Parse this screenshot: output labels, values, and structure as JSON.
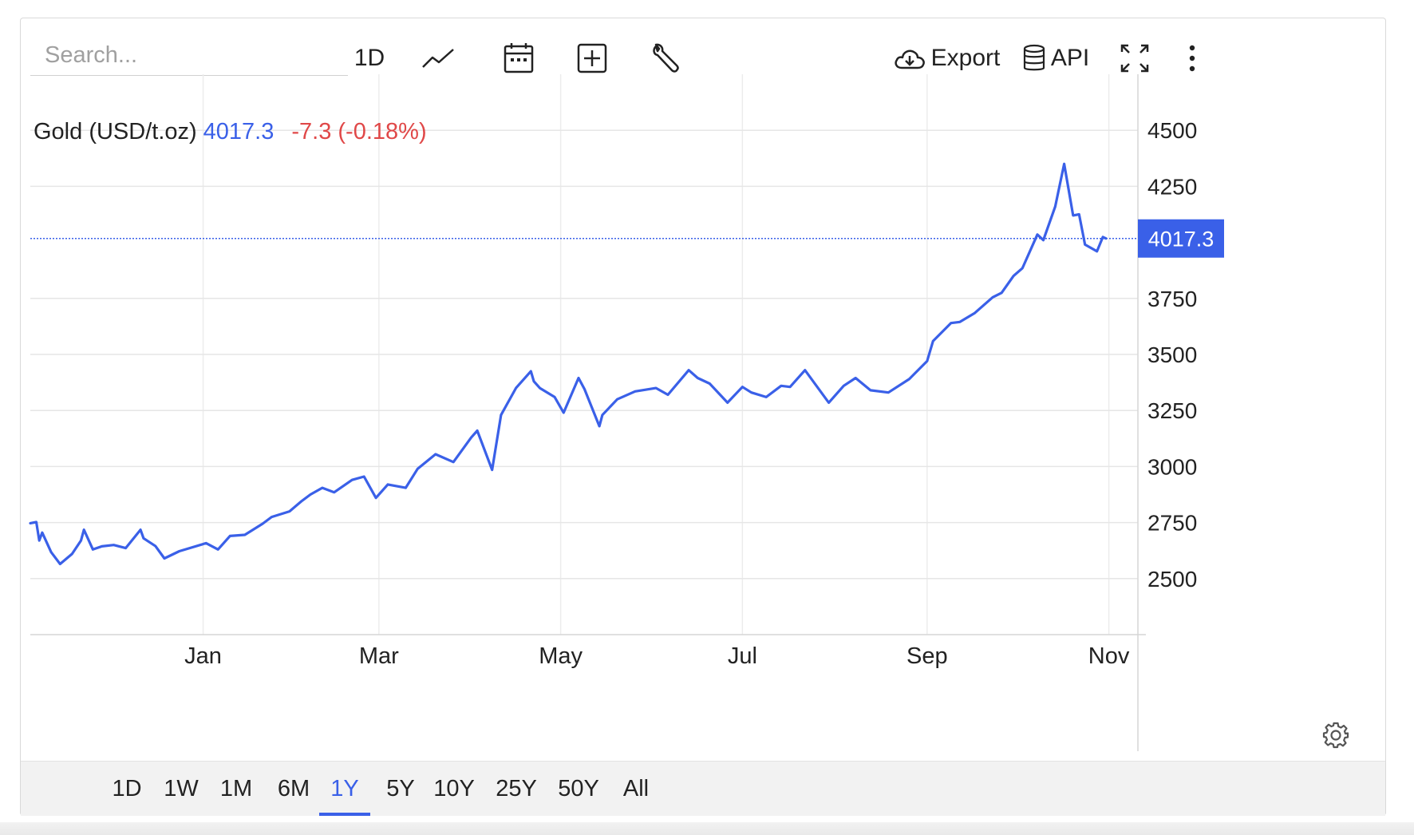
{
  "toolbar": {
    "search_placeholder": "Search...",
    "interval_label": "1D",
    "export_label": "Export",
    "api_label": "API"
  },
  "icons": {
    "chart_type": "line-chart-icon",
    "calendar": "calendar-icon",
    "add": "plus-box-icon",
    "tools": "wrench-icon",
    "export": "cloud-download-icon",
    "api": "database-icon",
    "fullscreen": "fullscreen-icon",
    "more": "more-vertical-icon",
    "settings": "gear-icon"
  },
  "legend": {
    "name": "Gold (USD/t.oz)",
    "price": "4017.3",
    "change": "-7.3 (-0.18%)"
  },
  "colors": {
    "line": "#3a60e8",
    "negative": "#e04848",
    "price_tag_bg": "#3a60e8"
  },
  "range_buttons": [
    "1D",
    "1W",
    "1M",
    "6M",
    "1Y",
    "5Y",
    "10Y",
    "25Y",
    "50Y",
    "All"
  ],
  "active_range": "1Y",
  "chart_data": {
    "type": "line",
    "series": [
      {
        "name": "Gold (USD/t.oz)",
        "x": [
          "2024-11-04",
          "2024-11-06",
          "2024-11-07",
          "2024-11-08",
          "2024-11-11",
          "2024-11-14",
          "2024-11-18",
          "2024-11-21",
          "2024-11-22",
          "2024-11-25",
          "2024-11-28",
          "2024-12-02",
          "2024-12-06",
          "2024-12-11",
          "2024-12-12",
          "2024-12-16",
          "2024-12-19",
          "2024-12-24",
          "2025-01-02",
          "2025-01-06",
          "2025-01-10",
          "2025-01-15",
          "2025-01-21",
          "2025-01-24",
          "2025-01-30",
          "2025-02-03",
          "2025-02-06",
          "2025-02-10",
          "2025-02-14",
          "2025-02-20",
          "2025-02-24",
          "2025-02-28",
          "2025-03-04",
          "2025-03-10",
          "2025-03-14",
          "2025-03-20",
          "2025-03-26",
          "2025-04-01",
          "2025-04-03",
          "2025-04-08",
          "2025-04-11",
          "2025-04-16",
          "2025-04-21",
          "2025-04-22",
          "2025-04-24",
          "2025-04-29",
          "2025-05-02",
          "2025-05-07",
          "2025-05-09",
          "2025-05-14",
          "2025-05-15",
          "2025-05-20",
          "2025-05-26",
          "2025-06-02",
          "2025-06-06",
          "2025-06-13",
          "2025-06-16",
          "2025-06-20",
          "2025-06-26",
          "2025-07-01",
          "2025-07-04",
          "2025-07-09",
          "2025-07-14",
          "2025-07-17",
          "2025-07-22",
          "2025-07-30",
          "2025-08-04",
          "2025-08-08",
          "2025-08-13",
          "2025-08-19",
          "2025-08-26",
          "2025-09-01",
          "2025-09-03",
          "2025-09-09",
          "2025-09-12",
          "2025-09-17",
          "2025-09-23",
          "2025-09-26",
          "2025-09-30",
          "2025-10-03",
          "2025-10-08",
          "2025-10-10",
          "2025-10-14",
          "2025-10-17",
          "2025-10-20",
          "2025-10-22",
          "2025-10-24",
          "2025-10-28",
          "2025-10-30",
          "2025-10-31"
        ],
        "values": [
          2747,
          2752,
          2670,
          2705,
          2618,
          2565,
          2610,
          2670,
          2718,
          2630,
          2644,
          2650,
          2636,
          2718,
          2680,
          2645,
          2590,
          2622,
          2658,
          2630,
          2690,
          2695,
          2745,
          2775,
          2800,
          2845,
          2875,
          2905,
          2885,
          2940,
          2955,
          2860,
          2920,
          2905,
          2990,
          3055,
          3020,
          3130,
          3160,
          2985,
          3230,
          3350,
          3425,
          3380,
          3350,
          3310,
          3240,
          3395,
          3345,
          3180,
          3230,
          3300,
          3335,
          3350,
          3320,
          3430,
          3395,
          3370,
          3285,
          3355,
          3330,
          3310,
          3360,
          3355,
          3430,
          3285,
          3360,
          3395,
          3340,
          3330,
          3390,
          3470,
          3560,
          3640,
          3645,
          3685,
          3755,
          3775,
          3850,
          3885,
          4035,
          4010,
          4160,
          4350,
          4120,
          4125,
          3990,
          3960,
          4024,
          4017.3
        ]
      }
    ],
    "y_ticks": [
      2500,
      2750,
      3000,
      3250,
      3500,
      3750,
      4250,
      4500
    ],
    "x_ticks": [
      {
        "label": "Jan",
        "x": "2025-01-01"
      },
      {
        "label": "Mar",
        "x": "2025-03-01"
      },
      {
        "label": "May",
        "x": "2025-05-01"
      },
      {
        "label": "Jul",
        "x": "2025-07-01"
      },
      {
        "label": "Sep",
        "x": "2025-09-01"
      },
      {
        "label": "Nov",
        "x": "2025-11-01"
      }
    ],
    "ylim": [
      2250,
      4750
    ],
    "xlim": [
      "2024-11-04",
      "2025-11-07"
    ],
    "last_value_label": "4017.3",
    "grid": true
  }
}
